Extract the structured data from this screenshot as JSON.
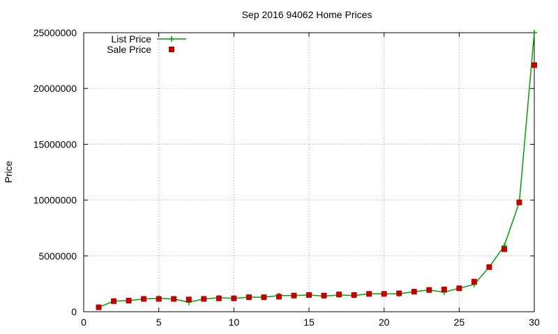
{
  "chart_data": {
    "type": "line",
    "title": "Sep 2016 94062 Home Prices",
    "xlabel": "",
    "ylabel": "Price",
    "xlim": [
      0,
      30
    ],
    "ylim": [
      0,
      25000000
    ],
    "x_ticks": [
      "0",
      "5",
      "10",
      "15",
      "20",
      "25",
      "30"
    ],
    "y_ticks": [
      "0",
      "5000000",
      "10000000",
      "15000000",
      "20000000",
      "25000000"
    ],
    "grid": true,
    "legend_position": "top-left",
    "x": [
      1,
      2,
      3,
      4,
      5,
      6,
      7,
      8,
      9,
      10,
      11,
      12,
      13,
      14,
      15,
      16,
      17,
      18,
      19,
      20,
      21,
      22,
      23,
      24,
      25,
      26,
      27,
      28,
      29,
      30
    ],
    "series": [
      {
        "name": "List Price",
        "style": "line+cross",
        "color": "#00a000",
        "values": [
          400000,
          950000,
          1000000,
          1150000,
          1200000,
          1150000,
          850000,
          1150000,
          1250000,
          1200000,
          1300000,
          1300000,
          1450000,
          1450000,
          1500000,
          1400000,
          1500000,
          1450000,
          1600000,
          1600000,
          1600000,
          1800000,
          1950000,
          1750000,
          2100000,
          2450000,
          4000000,
          5900000,
          9800000,
          25000000
        ]
      },
      {
        "name": "Sale Price",
        "style": "square",
        "color": "#c00000",
        "values": [
          400000,
          950000,
          1000000,
          1150000,
          1150000,
          1150000,
          1100000,
          1150000,
          1200000,
          1200000,
          1300000,
          1300000,
          1350000,
          1450000,
          1500000,
          1450000,
          1550000,
          1500000,
          1600000,
          1600000,
          1650000,
          1800000,
          1950000,
          2000000,
          2100000,
          2700000,
          4000000,
          5600000,
          9800000,
          22100000
        ]
      }
    ]
  }
}
